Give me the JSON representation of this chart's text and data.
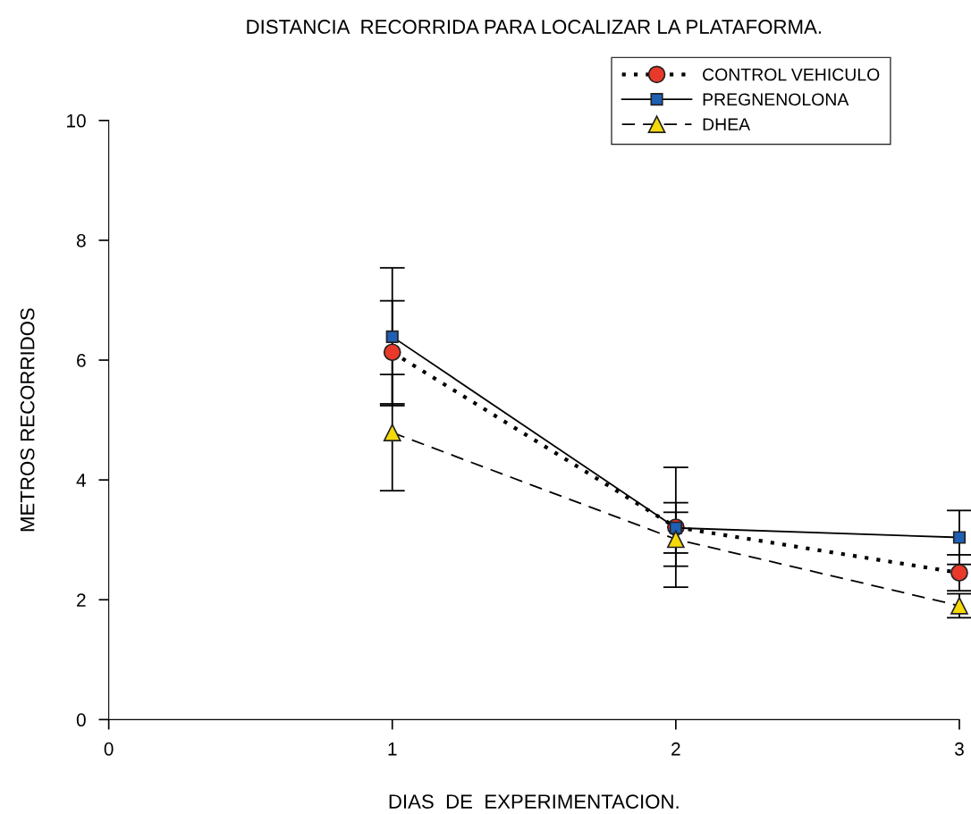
{
  "chart_data": {
    "type": "line",
    "title": "DISTANCIA  RECORRIDA PARA LOCALIZAR LA PLATAFORMA.",
    "xlabel": "DIAS  DE  EXPERIMENTACION.",
    "ylabel": "METROS RECORRIDOS",
    "x": [
      1,
      2,
      3
    ],
    "series": [
      {
        "name": "CONTROL VEHICULO",
        "color": "#e8392b",
        "marker": "circle",
        "line_style": "dotted",
        "values": [
          6.13,
          3.21,
          2.45
        ],
        "errors": [
          0.86,
          1.0,
          0.3
        ]
      },
      {
        "name": "PREGNENOLONA",
        "color": "#1f5fb4",
        "marker": "square",
        "line_style": "solid",
        "values": [
          6.39,
          3.2,
          3.04
        ],
        "errors": [
          1.15,
          0.42,
          0.45
        ]
      },
      {
        "name": "DHEA",
        "color": "#f5d90a",
        "marker": "triangle",
        "line_style": "dashed",
        "values": [
          4.79,
          3.01,
          1.9
        ],
        "errors": [
          0.97,
          0.45,
          0.2
        ]
      }
    ],
    "xlim": [
      0,
      3
    ],
    "xticks": [
      0,
      1,
      2,
      3
    ],
    "ylim": [
      0,
      10
    ],
    "yticks": [
      0,
      2,
      4,
      6,
      8,
      10
    ],
    "grid": false,
    "legend": "top right"
  }
}
